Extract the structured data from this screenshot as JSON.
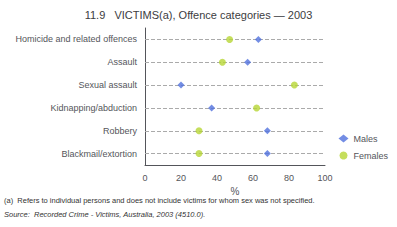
{
  "chart_data": {
    "type": "scatter",
    "title": "11.9   VICTIMS(a), Offence categories — 2003",
    "categories": [
      "Homicide and related offences",
      "Assault",
      "Sexual assault",
      "Kidnapping/abduction",
      "Robbery",
      "Blackmail/extortion"
    ],
    "series": [
      {
        "name": "Males",
        "marker": "diamond",
        "values": [
          63,
          57,
          20,
          37,
          68,
          68
        ]
      },
      {
        "name": "Females",
        "marker": "circle",
        "values": [
          47,
          43,
          83,
          62,
          30,
          30
        ]
      }
    ],
    "xlabel": "%",
    "xlim": [
      0,
      100
    ],
    "xticks": [
      0,
      20,
      40,
      60,
      80,
      100
    ],
    "grid": true,
    "legend": "lower right",
    "annotations": [
      "(a)  Refers to individual persons and does not include victims for whom sex was not specified.",
      "Source:  Recorded Crime - Victims, Australia, 2003 (4510.0)."
    ]
  }
}
